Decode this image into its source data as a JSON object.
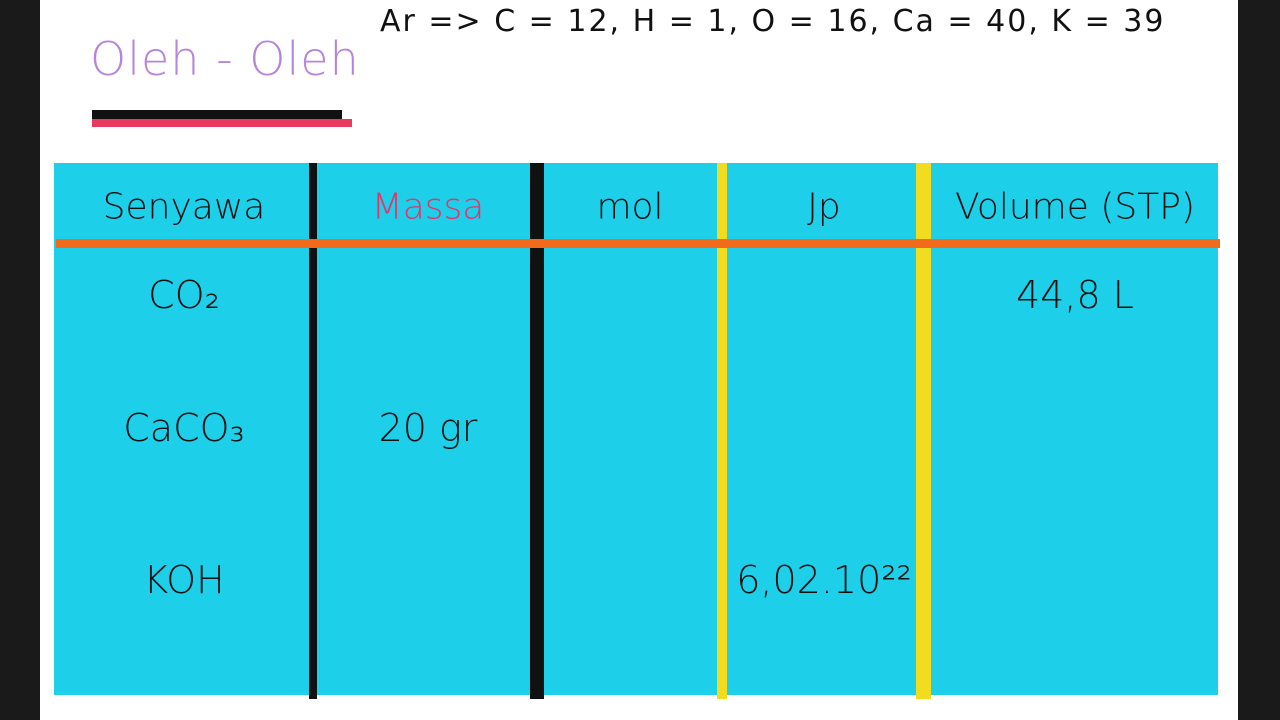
{
  "header": {
    "title": "Oleh - Oleh",
    "note": "Ar => C = 12, H = 1, O = 16, Ca = 40, K = 39"
  },
  "table": {
    "columns": [
      "Senyawa",
      "Massa",
      "mol",
      "Jp",
      "Volume (STP)"
    ],
    "rows": [
      [
        "CO₂",
        null,
        null,
        null,
        "44,8 L"
      ],
      [
        "CaCO₃",
        "20 gr",
        null,
        null,
        null
      ],
      [
        "KOH",
        null,
        null,
        "6,02.10²²",
        null
      ]
    ]
  }
}
